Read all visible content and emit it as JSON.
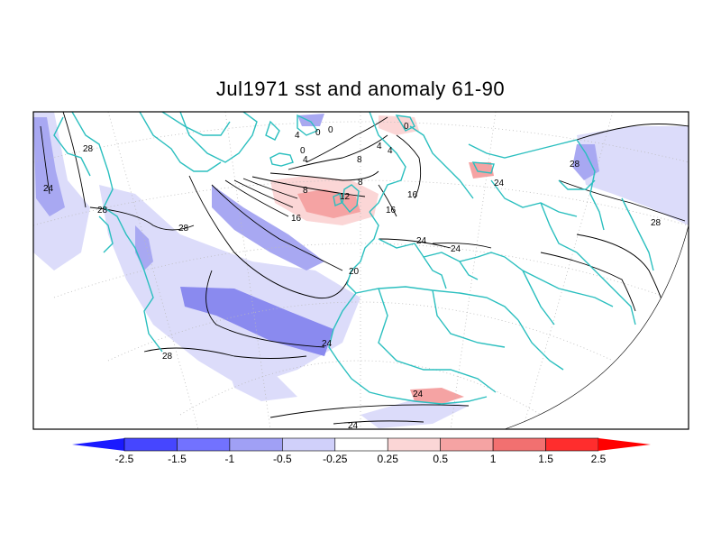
{
  "title": "Jul1971 sst and anomaly 61-90",
  "colors": {
    "coast": "#2bbfbf",
    "contour": "#000000",
    "neg_strong": "#7f7ff0",
    "neg_mid": "#a8a8f2",
    "neg_weak": "#dcdcfa",
    "pos_weak": "#fbd6d6",
    "pos_mid": "#f5a3a3",
    "pos_strong": "#ef6f6f"
  },
  "contour_labels": [
    "28",
    "24",
    "28",
    "28",
    "0",
    "4",
    "0",
    "4",
    "0",
    "0",
    "4",
    "4",
    "8",
    "8",
    "12",
    "16",
    "16",
    "16",
    "20",
    "24",
    "24",
    "24",
    "28",
    "28",
    "24",
    "28",
    "24",
    "24",
    "8"
  ],
  "chart_data": {
    "type": "heatmap",
    "title": "Jul1971 sst and anomaly 61-90",
    "variable_contours": "sst",
    "variable_shaded": "anomaly",
    "contour_levels": [
      0,
      4,
      8,
      12,
      16,
      20,
      24,
      28
    ],
    "colorbar": {
      "ticks": [
        "-2.5",
        "-1.5",
        "-1",
        "-0.5",
        "-0.25",
        "0.25",
        "0.5",
        "1",
        "1.5",
        "2.5"
      ],
      "colors": [
        "#1a1aff",
        "#4646ff",
        "#7272ff",
        "#a0a0f5",
        "#d0d0fa",
        "#ffffff",
        "#fbd6d6",
        "#f5a3a3",
        "#f27070",
        "#ff2d2d",
        "#ff0000"
      ]
    }
  }
}
